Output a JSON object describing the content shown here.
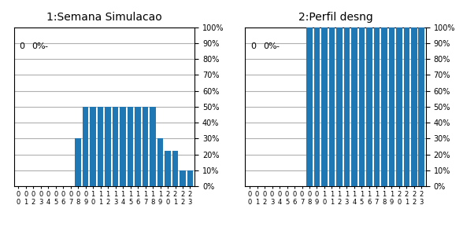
{
  "chart_data": [
    {
      "type": "bar",
      "title": "1:Semana Simulacao",
      "categories": [
        "0\n0",
        "0\n1",
        "0\n2",
        "0\n3",
        "0\n4",
        "0\n5",
        "0\n6",
        "0\n7",
        "0\n8",
        "0\n9",
        "1\n0",
        "1\n1",
        "1\n2",
        "1\n3",
        "1\n4",
        "1\n5",
        "1\n6",
        "1\n7",
        "1\n8",
        "1\n9",
        "2\n0",
        "2\n1",
        "2\n2",
        "2\n3"
      ],
      "values": [
        0,
        0,
        0,
        0,
        0,
        0,
        0,
        0,
        30,
        50,
        50,
        50,
        50,
        50,
        50,
        50,
        50,
        50,
        50,
        30,
        22,
        22,
        10,
        10
      ],
      "ylim": [
        0,
        100
      ],
      "yticks": [
        {
          "value": 0,
          "label": "0%"
        },
        {
          "value": 10,
          "label": "10%"
        },
        {
          "value": 20,
          "label": "20%"
        },
        {
          "value": 30,
          "label": "30%"
        },
        {
          "value": 40,
          "label": "40%"
        },
        {
          "value": 50,
          "label": "50%"
        },
        {
          "value": 60,
          "label": "60%"
        },
        {
          "value": 70,
          "label": "70%"
        },
        {
          "value": 80,
          "label": "80%"
        },
        {
          "value": 90,
          "label": "90%"
        },
        {
          "value": 100,
          "label": "100%"
        }
      ],
      "grid": true,
      "annotations": [
        "0",
        "0%",
        "-"
      ]
    },
    {
      "type": "bar",
      "title": "2:Perfil desng",
      "categories": [
        "0\n0",
        "0\n1",
        "0\n2",
        "0\n3",
        "0\n4",
        "0\n5",
        "0\n6",
        "0\n7",
        "0\n8",
        "0\n9",
        "1\n0",
        "1\n1",
        "1\n2",
        "1\n3",
        "1\n4",
        "1\n5",
        "1\n6",
        "1\n7",
        "1\n8",
        "1\n9",
        "2\n0",
        "2\n1",
        "2\n2",
        "2\n3"
      ],
      "values": [
        0,
        0,
        0,
        0,
        0,
        0,
        0,
        0,
        100,
        100,
        100,
        100,
        100,
        100,
        100,
        100,
        100,
        100,
        100,
        100,
        100,
        100,
        100,
        100
      ],
      "ylim": [
        0,
        100
      ],
      "yticks": [
        {
          "value": 0,
          "label": "0%"
        },
        {
          "value": 10,
          "label": "10%"
        },
        {
          "value": 20,
          "label": "20%"
        },
        {
          "value": 30,
          "label": "30%"
        },
        {
          "value": 40,
          "label": "40%"
        },
        {
          "value": 50,
          "label": "50%"
        },
        {
          "value": 60,
          "label": "60%"
        },
        {
          "value": 70,
          "label": "70%"
        },
        {
          "value": 80,
          "label": "80%"
        },
        {
          "value": 90,
          "label": "90%"
        },
        {
          "value": 100,
          "label": "100%"
        }
      ],
      "grid": true,
      "annotations": [
        "0",
        "0%",
        "-"
      ]
    }
  ]
}
